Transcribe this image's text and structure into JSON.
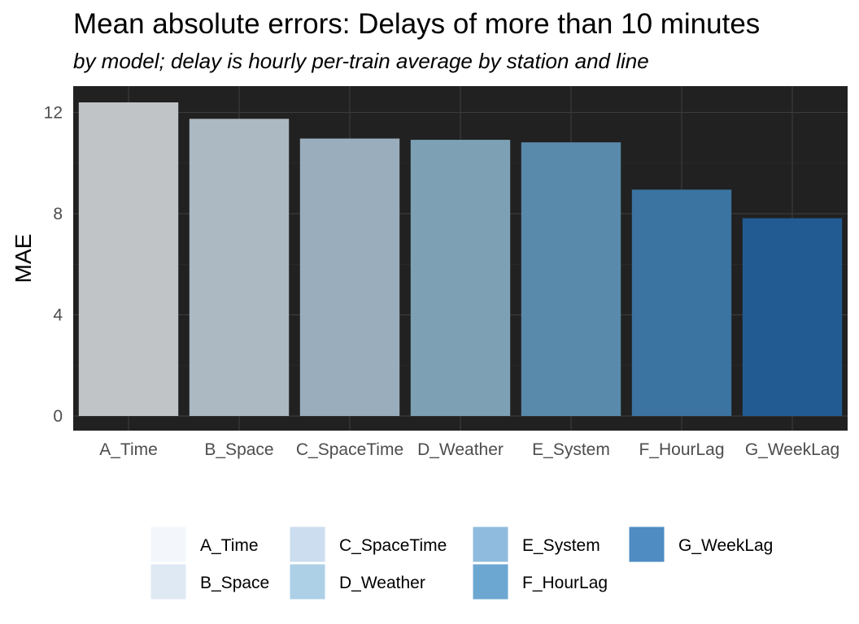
{
  "chart_data": {
    "type": "bar",
    "title": "Mean absolute errors: Delays of more than 10 minutes",
    "subtitle": "by model; delay is hourly per-train average by station and line",
    "xlabel": "",
    "ylabel": "MAE",
    "categories": [
      "A_Time",
      "B_Space",
      "C_SpaceTime",
      "D_Weather",
      "E_System",
      "F_HourLag",
      "G_WeekLag"
    ],
    "values": [
      12.4,
      11.75,
      10.97,
      10.92,
      10.82,
      8.95,
      7.82
    ],
    "ylim": [
      0,
      12.6
    ],
    "yticks": [
      0,
      4,
      8,
      12
    ],
    "bar_colors": [
      "#c1c4c7",
      "#acb8c2",
      "#9aadbd",
      "#7da0b4",
      "#5a8aab",
      "#3b74a0",
      "#225b91"
    ],
    "legend_swatch_colors": [
      "#f3f7fb",
      "#dfe9f4",
      "#cbddef",
      "#add0e7",
      "#8fbcde",
      "#6ca7d2",
      "#4e8cc2"
    ],
    "legend_position": "bottom",
    "panel_background": "#212121",
    "grid": true
  }
}
